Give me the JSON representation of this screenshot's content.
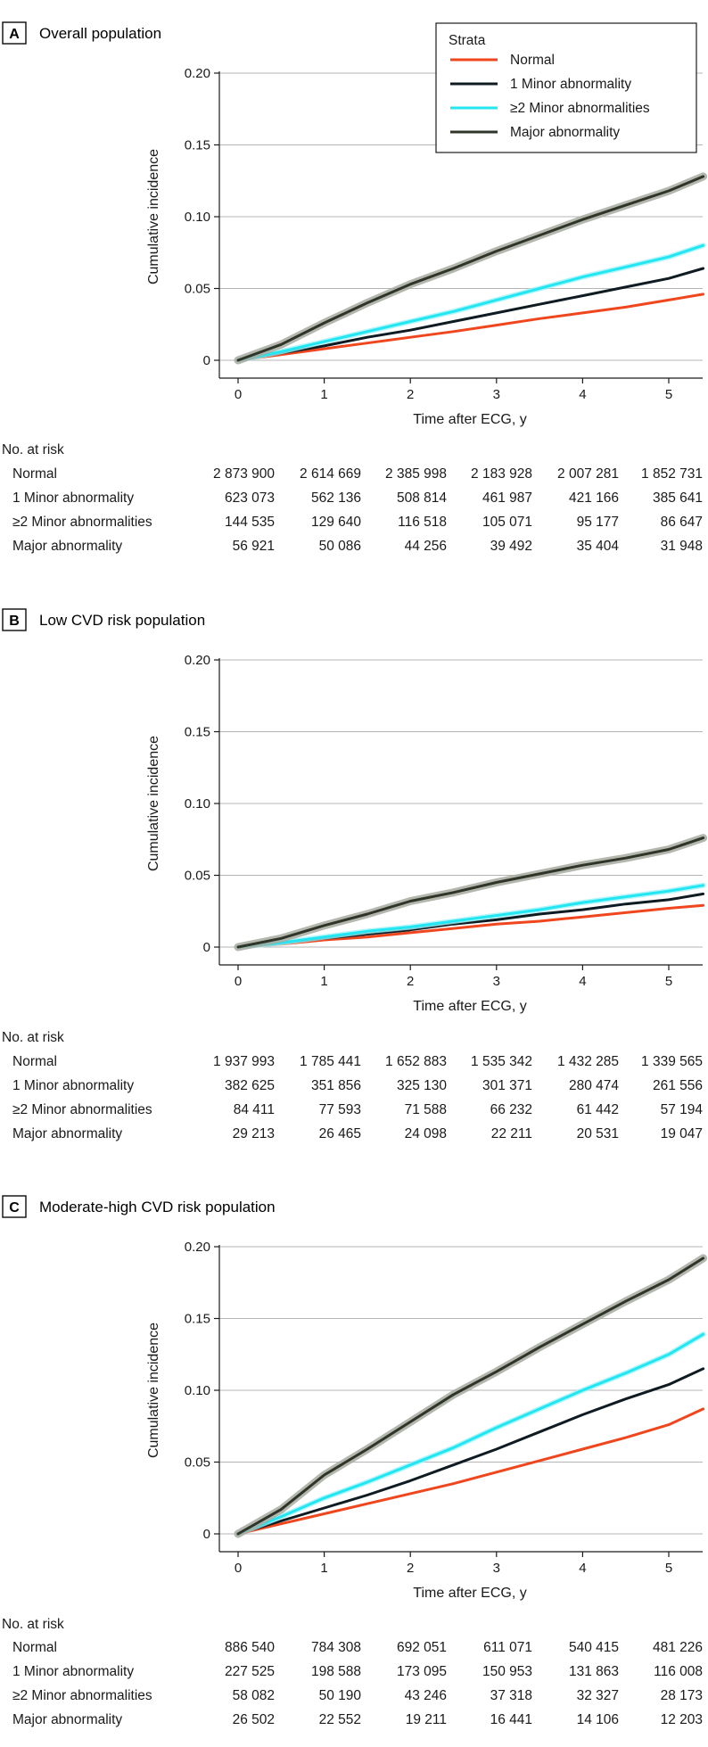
{
  "legend": {
    "title": "Strata",
    "items": [
      {
        "name": "Normal",
        "color": "#f0461e"
      },
      {
        "name": "1 Minor abnormality",
        "color": "#0f1b22"
      },
      {
        "name": "≥2 Minor abnormalities",
        "color": "#22e6f2"
      },
      {
        "name": "Major abnormality",
        "color": "#2f3528"
      }
    ]
  },
  "risk_header": "No. at risk",
  "chart_data": [
    {
      "type": "line",
      "panel_letter": "A",
      "title": "Overall population",
      "xlabel": "Time after ECG, y",
      "ylabel": "Cumulative incidence",
      "xlim": [
        -0.2,
        5.4
      ],
      "ylim": [
        -0.015,
        0.2
      ],
      "xticks": [
        0,
        1,
        2,
        3,
        4,
        5
      ],
      "yticks": [
        0,
        0.05,
        0.1,
        0.15,
        0.2
      ],
      "ytick_labels": [
        "0",
        "0.05",
        "0.10",
        "0.15",
        "0.20"
      ],
      "grid": true,
      "legend_position": "top-right",
      "series": [
        {
          "name": "Normal",
          "color": "#f0461e",
          "x": [
            0,
            0.5,
            1,
            1.5,
            2,
            2.5,
            3,
            3.5,
            4,
            4.5,
            5,
            5.4
          ],
          "y": [
            0,
            0.004,
            0.008,
            0.012,
            0.016,
            0.02,
            0.0245,
            0.029,
            0.033,
            0.037,
            0.042,
            0.046
          ]
        },
        {
          "name": "1 Minor abnormality",
          "color": "#0f1b22",
          "x": [
            0,
            0.5,
            1,
            1.5,
            2,
            2.5,
            3,
            3.5,
            4,
            4.5,
            5,
            5.4
          ],
          "y": [
            0,
            0.005,
            0.01,
            0.016,
            0.021,
            0.027,
            0.033,
            0.039,
            0.045,
            0.051,
            0.057,
            0.064
          ]
        },
        {
          "name": "≥2 Minor abnormalities",
          "color": "#22e6f2",
          "x": [
            0,
            0.5,
            1,
            1.5,
            2,
            2.5,
            3,
            3.5,
            4,
            4.5,
            5,
            5.4
          ],
          "y": [
            0,
            0.006,
            0.013,
            0.02,
            0.027,
            0.034,
            0.042,
            0.05,
            0.058,
            0.065,
            0.072,
            0.08
          ]
        },
        {
          "name": "Major abnormality",
          "color": "#2f3528",
          "x": [
            0,
            0.5,
            1,
            1.25,
            1.5,
            2,
            2.5,
            3,
            3.5,
            4,
            4.5,
            5,
            5.4
          ],
          "y": [
            0,
            0.011,
            0.026,
            0.033,
            0.04,
            0.053,
            0.064,
            0.076,
            0.087,
            0.098,
            0.108,
            0.118,
            0.128
          ]
        }
      ],
      "at_risk": {
        "rows": [
          {
            "label": "Normal",
            "values": [
              "2 873 900",
              "2 614 669",
              "2 385 998",
              "2 183 928",
              "2 007 281",
              "1 852 731"
            ]
          },
          {
            "label": "1 Minor abnormality",
            "values": [
              "623 073",
              "562 136",
              "508 814",
              "461 987",
              "421 166",
              "385 641"
            ]
          },
          {
            "label": "≥2 Minor abnormalities",
            "values": [
              "144 535",
              "129 640",
              "116 518",
              "105 071",
              "95 177",
              "86 647"
            ]
          },
          {
            "label": "Major abnormality",
            "values": [
              "56 921",
              "50 086",
              "44 256",
              "39 492",
              "35 404",
              "31 948"
            ]
          }
        ]
      }
    },
    {
      "type": "line",
      "panel_letter": "B",
      "title": "Low CVD risk population",
      "xlabel": "Time after ECG, y",
      "ylabel": "Cumulative incidence",
      "xlim": [
        -0.2,
        5.4
      ],
      "ylim": [
        -0.015,
        0.2
      ],
      "xticks": [
        0,
        1,
        2,
        3,
        4,
        5
      ],
      "yticks": [
        0,
        0.05,
        0.1,
        0.15,
        0.2
      ],
      "ytick_labels": [
        "0",
        "0.05",
        "0.10",
        "0.15",
        "0.20"
      ],
      "grid": true,
      "series": [
        {
          "name": "Normal",
          "color": "#f0461e",
          "x": [
            0,
            0.5,
            1,
            1.5,
            2,
            2.5,
            3,
            3.5,
            4,
            4.5,
            5,
            5.4
          ],
          "y": [
            0,
            0.002,
            0.005,
            0.007,
            0.01,
            0.013,
            0.016,
            0.018,
            0.021,
            0.024,
            0.027,
            0.029
          ]
        },
        {
          "name": "1 Minor abnormality",
          "color": "#0f1b22",
          "x": [
            0,
            0.5,
            1,
            1.5,
            2,
            2.5,
            3,
            3.5,
            4,
            4.5,
            5,
            5.4
          ],
          "y": [
            0,
            0.003,
            0.006,
            0.009,
            0.012,
            0.016,
            0.019,
            0.023,
            0.026,
            0.03,
            0.033,
            0.037
          ]
        },
        {
          "name": "≥2 Minor abnormalities",
          "color": "#22e6f2",
          "x": [
            0,
            0.5,
            1,
            1.5,
            2,
            2.5,
            3,
            3.5,
            4,
            4.5,
            5,
            5.4
          ],
          "y": [
            0,
            0.003,
            0.007,
            0.011,
            0.014,
            0.018,
            0.022,
            0.026,
            0.031,
            0.035,
            0.039,
            0.043
          ]
        },
        {
          "name": "Major abnormality",
          "color": "#2f3528",
          "x": [
            0,
            0.5,
            1,
            1.5,
            2,
            2.5,
            3,
            3.5,
            4,
            4.5,
            5,
            5.4
          ],
          "y": [
            0,
            0.006,
            0.015,
            0.023,
            0.032,
            0.038,
            0.045,
            0.051,
            0.057,
            0.062,
            0.068,
            0.076
          ]
        }
      ],
      "at_risk": {
        "rows": [
          {
            "label": "Normal",
            "values": [
              "1 937 993",
              "1 785 441",
              "1 652 883",
              "1 535 342",
              "1 432 285",
              "1 339 565"
            ]
          },
          {
            "label": "1 Minor abnormality",
            "values": [
              "382 625",
              "351 856",
              "325 130",
              "301 371",
              "280 474",
              "261 556"
            ]
          },
          {
            "label": "≥2 Minor abnormalities",
            "values": [
              "84 411",
              "77 593",
              "71 588",
              "66 232",
              "61 442",
              "57 194"
            ]
          },
          {
            "label": "Major abnormality",
            "values": [
              "29 213",
              "26 465",
              "24 098",
              "22 211",
              "20 531",
              "19 047"
            ]
          }
        ]
      }
    },
    {
      "type": "line",
      "panel_letter": "C",
      "title": "Moderate-high CVD risk population",
      "xlabel": "Time after ECG, y",
      "ylabel": "Cumulative incidence",
      "xlim": [
        -0.2,
        5.4
      ],
      "ylim": [
        -0.015,
        0.2
      ],
      "xticks": [
        0,
        1,
        2,
        3,
        4,
        5
      ],
      "yticks": [
        0,
        0.05,
        0.1,
        0.15,
        0.2
      ],
      "ytick_labels": [
        "0",
        "0.05",
        "0.10",
        "0.15",
        "0.20"
      ],
      "grid": true,
      "series": [
        {
          "name": "Normal",
          "color": "#f0461e",
          "x": [
            0,
            0.5,
            1,
            1.5,
            2,
            2.5,
            3,
            3.5,
            4,
            4.5,
            5,
            5.4
          ],
          "y": [
            0,
            0.007,
            0.014,
            0.021,
            0.028,
            0.035,
            0.043,
            0.051,
            0.059,
            0.067,
            0.076,
            0.087
          ]
        },
        {
          "name": "1 Minor abnormality",
          "color": "#0f1b22",
          "x": [
            0,
            0.5,
            1,
            1.5,
            2,
            2.5,
            3,
            3.5,
            4,
            4.5,
            5,
            5.4
          ],
          "y": [
            0,
            0.009,
            0.018,
            0.027,
            0.037,
            0.048,
            0.059,
            0.071,
            0.083,
            0.094,
            0.104,
            0.115
          ]
        },
        {
          "name": "≥2 Minor abnormalities",
          "color": "#22e6f2",
          "x": [
            0,
            0.5,
            1,
            1.5,
            2,
            2.5,
            3,
            3.5,
            4,
            4.5,
            5,
            5.4
          ],
          "y": [
            0,
            0.012,
            0.025,
            0.036,
            0.048,
            0.06,
            0.074,
            0.087,
            0.1,
            0.112,
            0.125,
            0.139
          ]
        },
        {
          "name": "Major abnormality",
          "color": "#2f3528",
          "x": [
            0,
            0.5,
            1,
            1.25,
            1.5,
            2,
            2.5,
            3,
            3.5,
            4,
            4.5,
            5,
            5.4
          ],
          "y": [
            0,
            0.017,
            0.041,
            0.05,
            0.059,
            0.078,
            0.097,
            0.113,
            0.13,
            0.146,
            0.162,
            0.177,
            0.192
          ]
        }
      ],
      "at_risk": {
        "rows": [
          {
            "label": "Normal",
            "values": [
              "886 540",
              "784 308",
              "692 051",
              "611 071",
              "540 415",
              "481 226"
            ]
          },
          {
            "label": "1 Minor abnormality",
            "values": [
              "227 525",
              "198 588",
              "173 095",
              "150 953",
              "131 863",
              "116 008"
            ]
          },
          {
            "label": "≥2 Minor abnormalities",
            "values": [
              "58 082",
              "50 190",
              "43 246",
              "37 318",
              "32 327",
              "28 173"
            ]
          },
          {
            "label": "Major abnormality",
            "values": [
              "26 502",
              "22 552",
              "19 211",
              "16 441",
              "14 106",
              "12 203"
            ]
          }
        ]
      }
    }
  ]
}
